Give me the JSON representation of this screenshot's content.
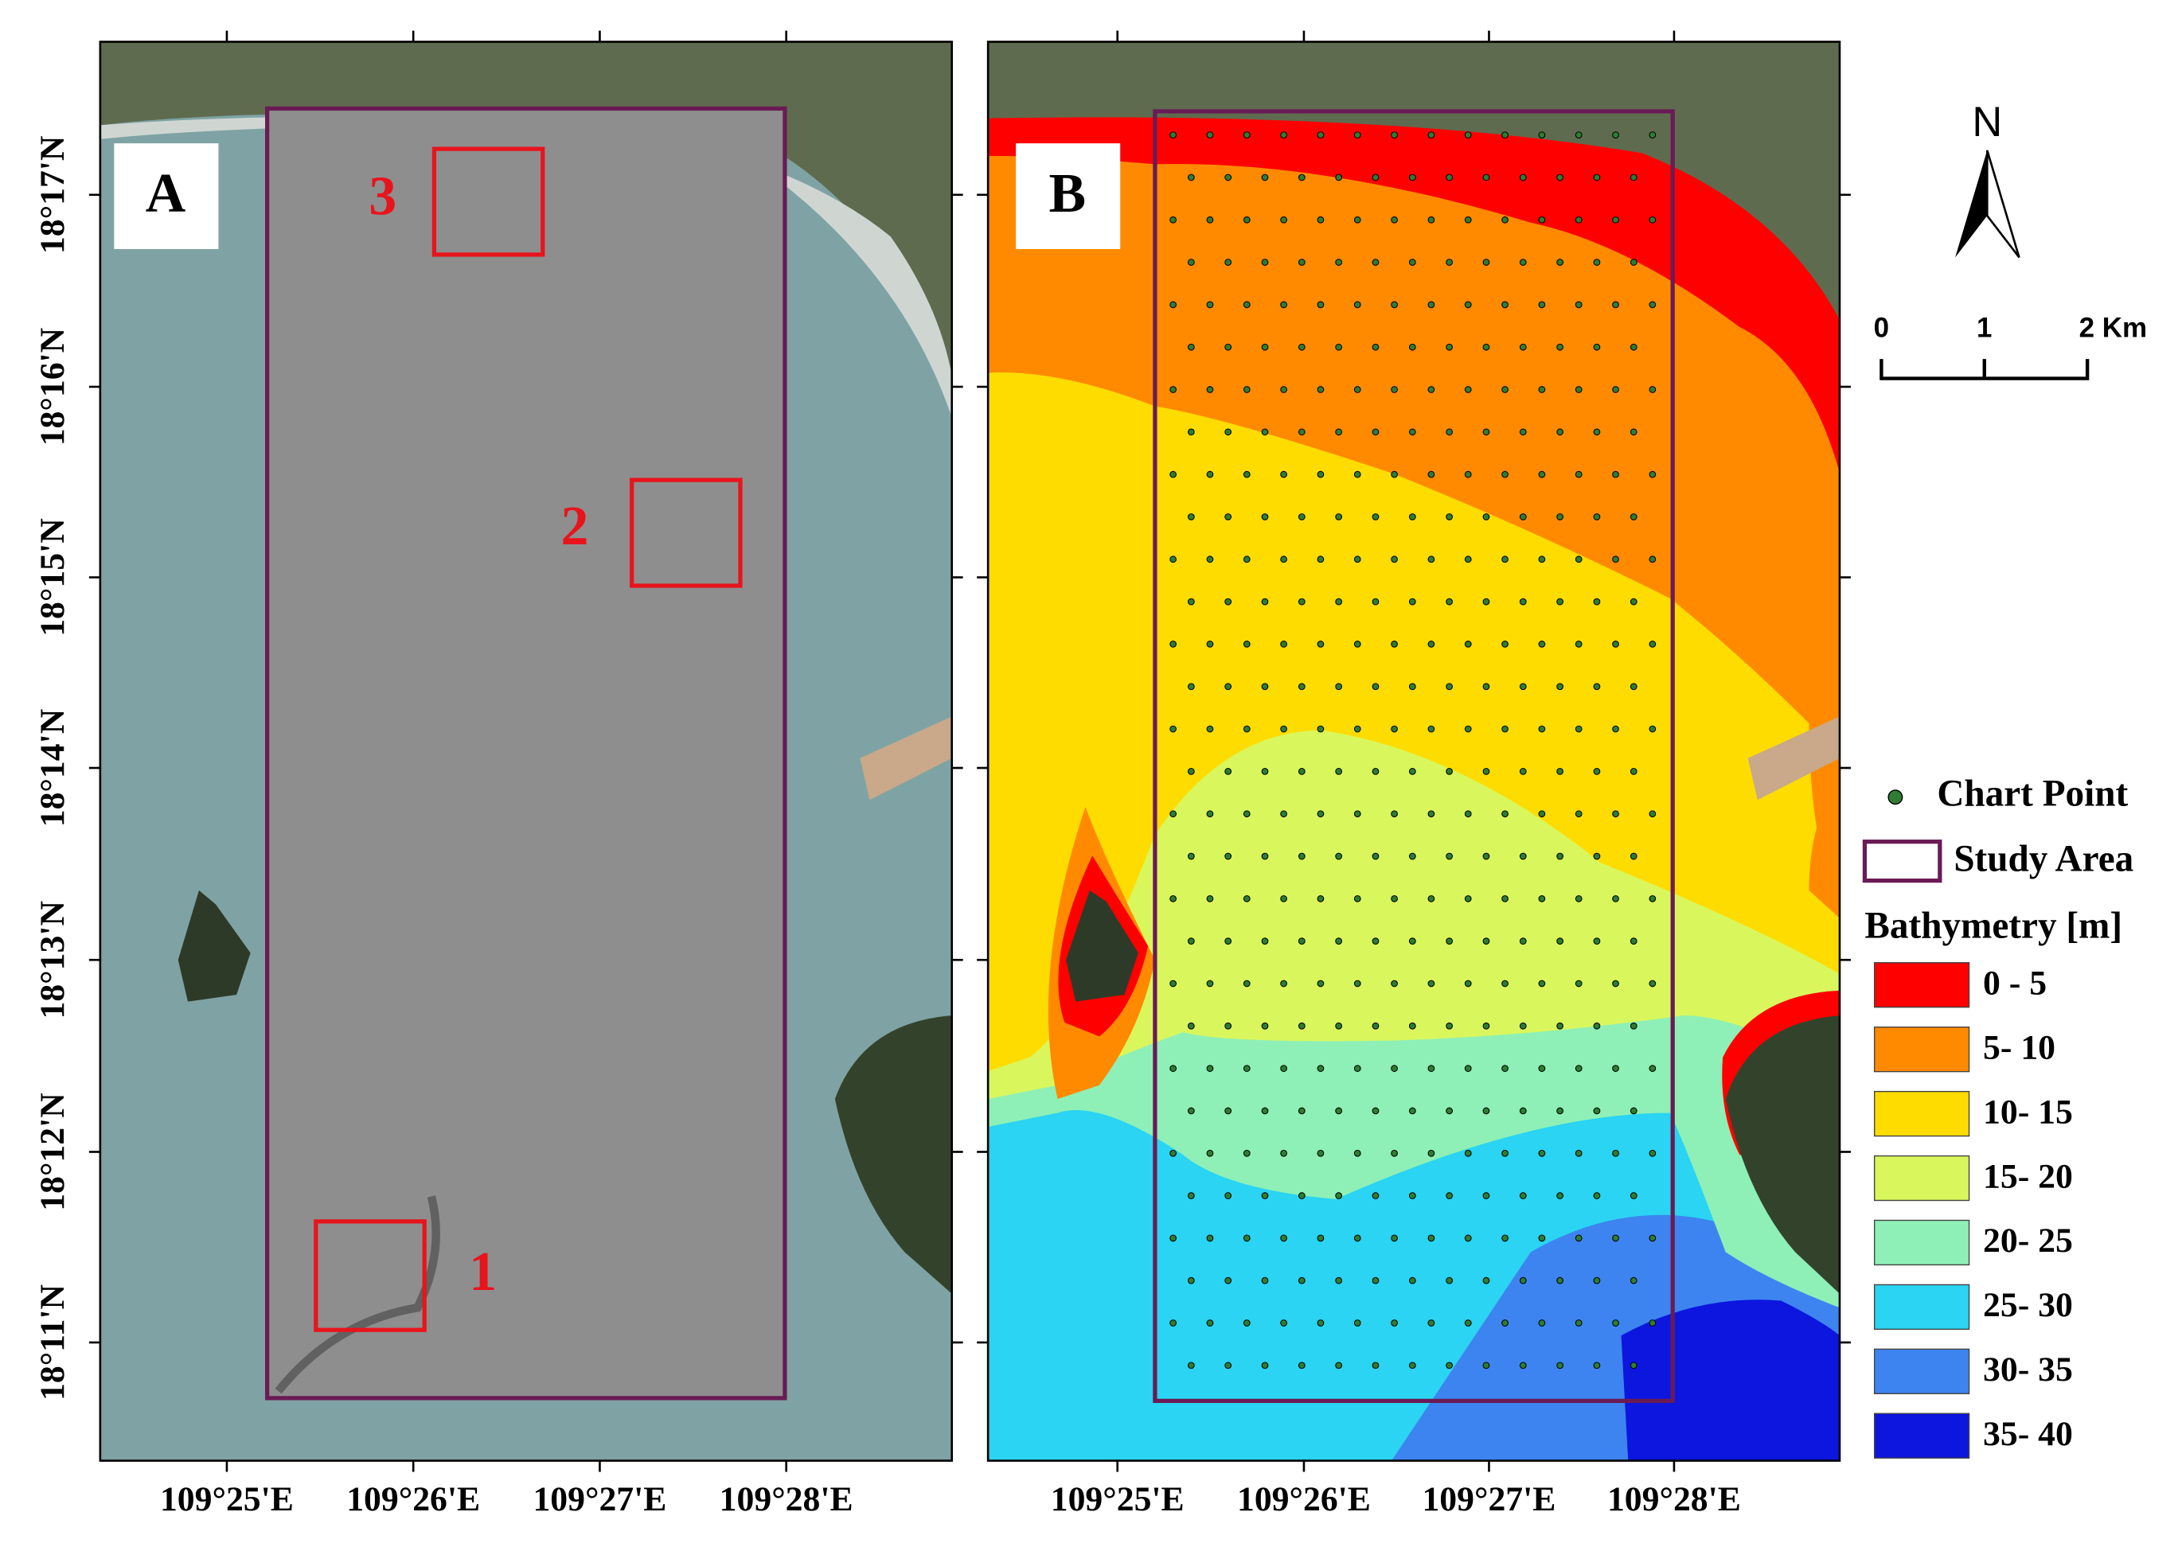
{
  "panels": [
    {
      "label": "A"
    },
    {
      "label": "B"
    }
  ],
  "boxes": [
    "1",
    "2",
    "3"
  ],
  "lat_labels": [
    "18°17'N",
    "18°16'N",
    "18°15'N",
    "18°14'N",
    "18°13'N",
    "18°12'N",
    "18°11'N"
  ],
  "lon_labels": [
    "109°25'E",
    "109°26'E",
    "109°27'E",
    "109°28'E"
  ],
  "north": "N",
  "scale": {
    "labels": [
      "0",
      "1",
      "2 Km"
    ]
  },
  "legend": {
    "chart_point": "Chart Point",
    "study_area": "Study Area",
    "title": "Bathymetry [m]",
    "classes": [
      {
        "label": "0 - 5",
        "color": "#ff0000"
      },
      {
        "label": "5- 10",
        "color": "#ff8a00"
      },
      {
        "label": "10- 15",
        "color": "#ffdc00"
      },
      {
        "label": "15- 20",
        "color": "#d9f75c"
      },
      {
        "label": "20- 25",
        "color": "#8ef0b6"
      },
      {
        "label": "25- 30",
        "color": "#2ad4f2"
      },
      {
        "label": "30- 35",
        "color": "#3d84f0"
      },
      {
        "label": "35- 40",
        "color": "#0c16de"
      }
    ]
  }
}
